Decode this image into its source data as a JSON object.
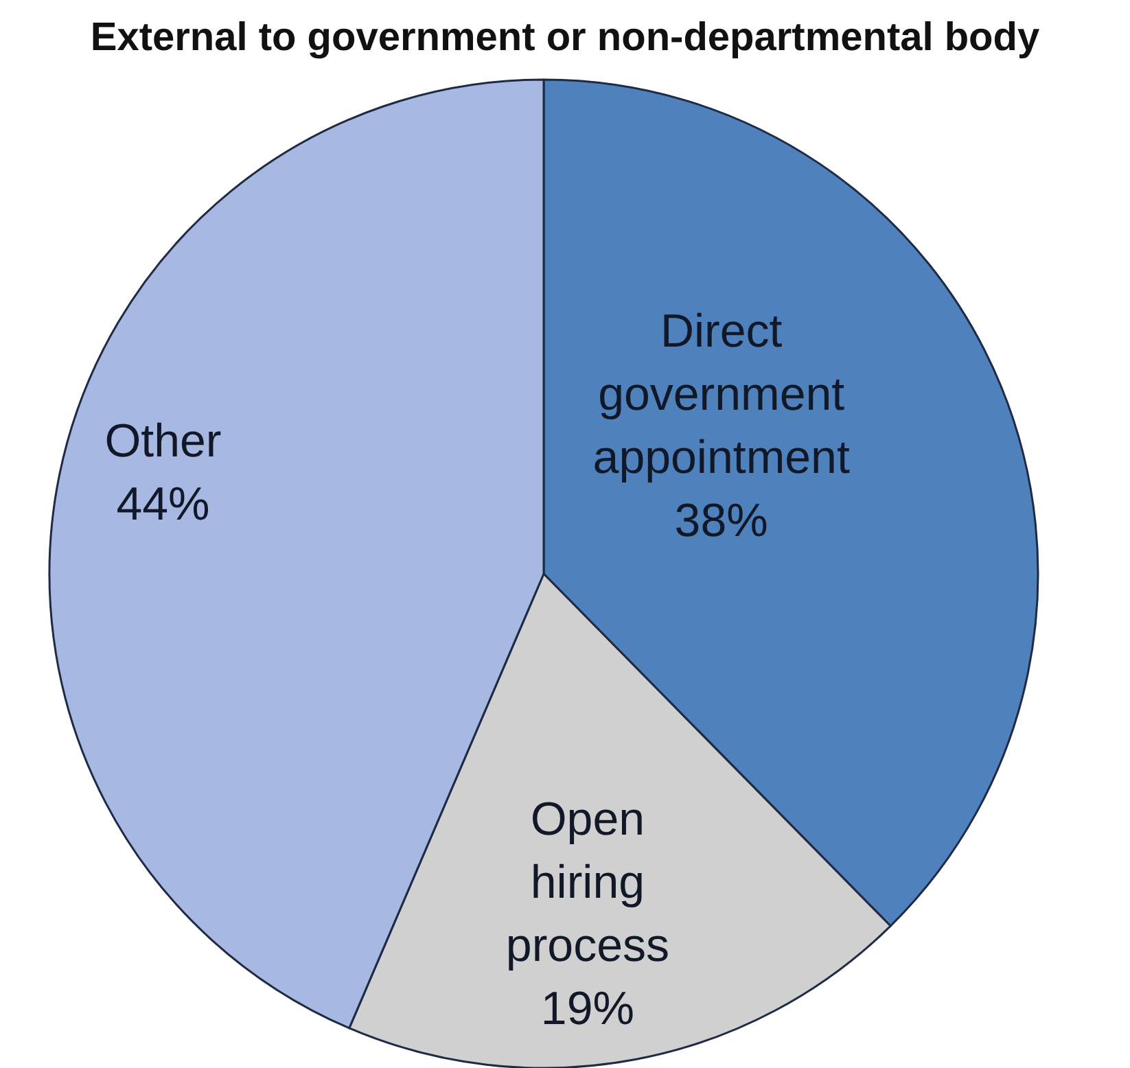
{
  "chart_data": {
    "type": "pie",
    "title": "External to government or non-departmental body",
    "categories": [
      "Direct government appointment",
      "Open hiring process",
      "Other"
    ],
    "values": [
      38,
      19,
      44
    ],
    "colors": [
      "#4f81bd",
      "#d0d0d0",
      "#a7b9e2"
    ],
    "value_labels": [
      "38%",
      "19%",
      "44%"
    ]
  }
}
